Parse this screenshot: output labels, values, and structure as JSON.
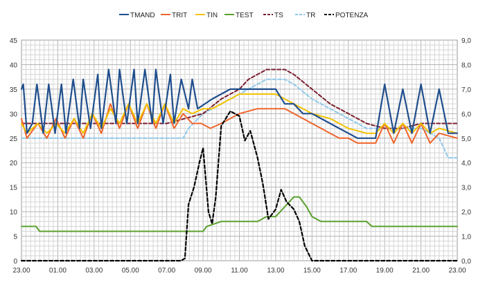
{
  "chart_data": {
    "type": "line",
    "title": "",
    "xlabel": "",
    "ylabel": "",
    "x_tick_labels": [
      "23.00",
      "01.00",
      "03.00",
      "05.00",
      "07.00",
      "09.00",
      "11.00",
      "13.00",
      "15.00",
      "17.00",
      "19.00",
      "21.00",
      "23.00"
    ],
    "x_start_hour": 23,
    "x_range_hours": [
      0,
      24
    ],
    "ylim_left": [
      0,
      45
    ],
    "ylim_right": [
      0,
      9
    ],
    "y_left_ticks": [
      "0",
      "5",
      "10",
      "15",
      "20",
      "25",
      "30",
      "35",
      "40",
      "45"
    ],
    "y_right_ticks": [
      "0,0",
      "1,0",
      "2,0",
      "3,0",
      "4,0",
      "5,0",
      "6,0",
      "7,0",
      "8,0",
      "9,0"
    ],
    "grid": true,
    "legend_position": "top",
    "series": [
      {
        "name": "TMAND",
        "color": "#1f4e8c",
        "style": "solid",
        "axis": "left",
        "x": [
          0,
          0.1,
          0.3,
          0.6,
          0.85,
          1.2,
          1.5,
          1.85,
          2.2,
          2.45,
          2.85,
          3.2,
          3.4,
          3.8,
          4.2,
          4.4,
          4.8,
          5.2,
          5.4,
          5.8,
          6.2,
          6.4,
          6.8,
          7.2,
          7.4,
          7.8,
          8.2,
          8.4,
          8.8,
          9.2,
          9.4,
          9.7,
          10.1,
          10.5,
          11,
          11.5,
          12,
          12.5,
          13,
          13.5,
          14,
          14.5,
          15,
          15.5,
          16,
          16.5,
          17,
          17.5,
          18,
          18.5,
          19,
          19.5,
          20,
          20.5,
          21,
          21.5,
          22,
          22.5,
          23,
          23.5,
          23.8,
          24
        ],
        "y": [
          35,
          36,
          26,
          28,
          36,
          26,
          36,
          26,
          36,
          26,
          37,
          27,
          37,
          27,
          38,
          27,
          39,
          28,
          39,
          28,
          39,
          28,
          39,
          28,
          39,
          28,
          38,
          28,
          37,
          31,
          37,
          31,
          32,
          33,
          34,
          35,
          35,
          35,
          35,
          35,
          35,
          32,
          32,
          30,
          30,
          29,
          28,
          27,
          26,
          25,
          25,
          25,
          36,
          26,
          35,
          26,
          36,
          26,
          35,
          26,
          26,
          26
        ]
      },
      {
        "name": "TRIT",
        "color": "#f0642a",
        "style": "solid",
        "axis": "left",
        "x": [
          0,
          0.3,
          0.9,
          1.4,
          1.9,
          2.4,
          2.9,
          3.4,
          3.9,
          4.4,
          4.9,
          5.4,
          5.9,
          6.4,
          6.9,
          7.4,
          7.9,
          8.4,
          8.9,
          9.4,
          9.9,
          10.4,
          11,
          11.5,
          12,
          13,
          14,
          14.5,
          15,
          15.5,
          16,
          16.5,
          17,
          17.5,
          18,
          18.5,
          19,
          19.5,
          20,
          20.5,
          21,
          21.5,
          22,
          22.5,
          23,
          24
        ],
        "y": [
          29,
          25,
          28,
          25,
          29,
          25,
          29,
          25,
          30,
          26,
          32,
          27,
          32,
          27,
          32,
          27,
          32,
          27,
          30,
          28,
          28,
          27,
          28,
          29,
          30,
          31,
          31,
          31,
          30,
          29,
          28,
          27,
          26,
          25,
          25,
          24,
          24,
          24,
          28,
          24,
          28,
          24,
          28,
          24,
          26,
          25
        ]
      },
      {
        "name": "TIN",
        "color": "#f2c200",
        "style": "solid",
        "axis": "left",
        "x": [
          0,
          0.3,
          0.9,
          1.4,
          1.9,
          2.4,
          2.9,
          3.4,
          3.9,
          4.4,
          4.9,
          5.4,
          5.9,
          6.4,
          6.9,
          7.4,
          7.9,
          8.4,
          8.9,
          9.4,
          10,
          10.5,
          11,
          11.5,
          12,
          13,
          14,
          14.5,
          15,
          15.5,
          16,
          17,
          18,
          19,
          19.5,
          20,
          20.5,
          21,
          21.5,
          22,
          22.5,
          23,
          24
        ],
        "y": [
          28,
          26,
          28,
          26,
          28,
          26,
          29,
          26,
          30,
          27,
          31,
          28,
          32,
          28,
          32,
          28,
          32,
          28,
          31,
          30,
          31,
          31,
          32,
          33,
          34,
          34,
          34,
          33,
          32,
          31,
          30,
          29,
          27,
          26,
          26,
          28,
          26,
          28,
          26,
          28,
          26,
          27,
          26
        ]
      },
      {
        "name": "TEST",
        "color": "#5aa02c",
        "style": "solid",
        "axis": "left",
        "x": [
          0,
          0.8,
          1,
          10,
          10.2,
          11,
          12,
          13,
          13.5,
          14,
          14.5,
          15,
          15.3,
          15.7,
          16,
          16.5,
          17,
          18,
          19,
          19.3,
          20,
          24
        ],
        "y": [
          7,
          7,
          6,
          6,
          7,
          8,
          8,
          8,
          9,
          9,
          11,
          13,
          13,
          11,
          9,
          8,
          8,
          8,
          8,
          7,
          7,
          7
        ]
      },
      {
        "name": "TS",
        "color": "#7a1e2e",
        "style": "dashed",
        "axis": "left",
        "x": [
          0,
          1,
          8,
          9,
          10,
          11,
          12,
          12.5,
          13,
          13.5,
          14,
          14.5,
          15,
          16,
          17,
          18,
          19,
          20,
          21,
          22,
          23,
          24
        ],
        "y": [
          28,
          28,
          28,
          29,
          30,
          33,
          35,
          37,
          38,
          39,
          39,
          39,
          38,
          35,
          32,
          30,
          28,
          27,
          27,
          28,
          28,
          28
        ]
      },
      {
        "name": "TR",
        "color": "#8fc8ea",
        "style": "dashed",
        "axis": "left",
        "x": [
          0,
          8,
          8.9,
          9.2,
          10,
          11,
          12,
          13,
          13.5,
          14,
          14.5,
          15,
          16,
          17,
          18,
          19,
          20,
          21,
          22,
          23,
          23.5,
          24
        ],
        "y": [
          25,
          25,
          25,
          27,
          30,
          32,
          34,
          36,
          37,
          37,
          37,
          36,
          33,
          31,
          29,
          27,
          27,
          27,
          27,
          25,
          21,
          21
        ]
      },
      {
        "name": "POTENZA",
        "color": "#000000",
        "style": "dashed",
        "axis": "right",
        "x": [
          0,
          8.8,
          9,
          9.2,
          9.5,
          9.8,
          10,
          10.3,
          10.5,
          10.7,
          11,
          11.5,
          12,
          12.3,
          12.6,
          13,
          13.3,
          13.6,
          14,
          14.3,
          14.6,
          15,
          15.3,
          15.6,
          16,
          16.2,
          17,
          23,
          24
        ],
        "y": [
          0,
          0,
          0.1,
          2.3,
          3.0,
          4.0,
          4.6,
          2.0,
          1.5,
          2.6,
          5.5,
          6.1,
          5.9,
          4.9,
          5.3,
          4.2,
          3.1,
          1.7,
          2.1,
          2.9,
          2.4,
          2.1,
          1.6,
          0.6,
          0,
          0,
          0,
          0,
          0
        ]
      }
    ]
  }
}
